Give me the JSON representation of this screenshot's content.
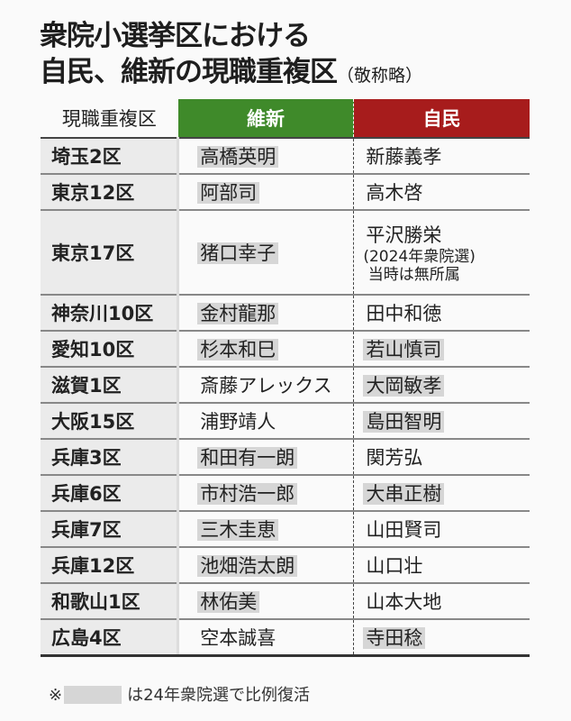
{
  "title": {
    "line1": "衆院小選挙区における",
    "line2": "自民、維新の現職重複区",
    "note": "（敬称略）"
  },
  "colors": {
    "ishin": "#3f8a2a",
    "jimin": "#a71c1c",
    "highlight": "#d6d6d6"
  },
  "table": {
    "headers": {
      "district": "現職重複区",
      "ishin": "維新",
      "jimin": "自民"
    },
    "rows": [
      {
        "district": "埼玉2区",
        "ishin": "高橋英明",
        "ishin_hl": true,
        "jimin": "新藤義孝",
        "jimin_hl": false
      },
      {
        "district": "東京12区",
        "ishin": "阿部司",
        "ishin_hl": true,
        "jimin": "高木啓",
        "jimin_hl": false
      },
      {
        "district": "東京17区",
        "ishin": "猪口幸子",
        "ishin_hl": true,
        "jimin": "平沢勝栄",
        "jimin_hl": false,
        "jimin_note1": "2024年衆院選",
        "jimin_note2": "当時は無所属"
      },
      {
        "district": "神奈川10区",
        "ishin": "金村龍那",
        "ishin_hl": true,
        "jimin": "田中和徳",
        "jimin_hl": false
      },
      {
        "district": "愛知10区",
        "ishin": "杉本和巳",
        "ishin_hl": true,
        "jimin": "若山慎司",
        "jimin_hl": true
      },
      {
        "district": "滋賀1区",
        "ishin": "斎藤アレックス",
        "ishin_hl": false,
        "jimin": "大岡敏孝",
        "jimin_hl": true
      },
      {
        "district": "大阪15区",
        "ishin": "浦野靖人",
        "ishin_hl": false,
        "jimin": "島田智明",
        "jimin_hl": true
      },
      {
        "district": "兵庫3区",
        "ishin": "和田有一朗",
        "ishin_hl": true,
        "jimin": "関芳弘",
        "jimin_hl": false
      },
      {
        "district": "兵庫6区",
        "ishin": "市村浩一郎",
        "ishin_hl": true,
        "jimin": "大串正樹",
        "jimin_hl": true
      },
      {
        "district": "兵庫7区",
        "ishin": "三木圭恵",
        "ishin_hl": true,
        "jimin": "山田賢司",
        "jimin_hl": false
      },
      {
        "district": "兵庫12区",
        "ishin": "池畑浩太朗",
        "ishin_hl": true,
        "jimin": "山口壮",
        "jimin_hl": false
      },
      {
        "district": "和歌山1区",
        "ishin": "林佑美",
        "ishin_hl": true,
        "jimin": "山本大地",
        "jimin_hl": false
      },
      {
        "district": "広島4区",
        "ishin": "空本誠喜",
        "ishin_hl": false,
        "jimin": "寺田稔",
        "jimin_hl": true
      }
    ]
  },
  "footnote": {
    "mark": "※",
    "text": "は24年衆院選で比例復活"
  }
}
